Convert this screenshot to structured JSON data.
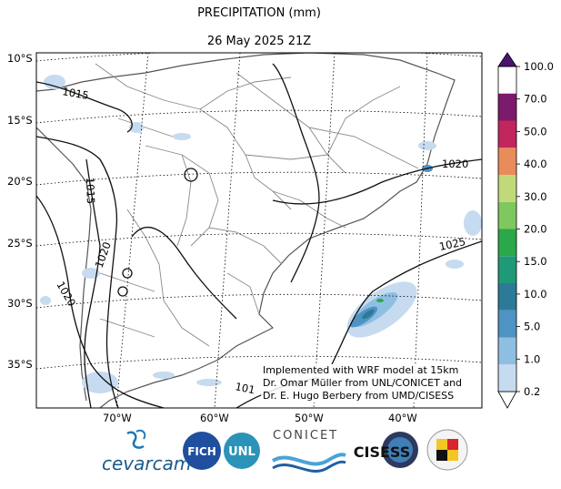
{
  "title": "PRECIPITATION (mm)",
  "subtitle": "26 May 2025 21Z",
  "lat_labels": [
    "10°S",
    "15°S",
    "20°S",
    "25°S",
    "30°S",
    "35°S"
  ],
  "lon_labels": [
    "70°W",
    "60°W",
    "50°W",
    "40°W"
  ],
  "contour_labels": [
    "1015",
    "1015",
    "1020",
    "1020",
    "1020",
    "1025",
    "101"
  ],
  "colorbar": {
    "ticks": [
      "100.0",
      "70.0",
      "50.0",
      "40.0",
      "30.0",
      "20.0",
      "15.0",
      "10.0",
      "5.0",
      "1.0",
      "0.2"
    ],
    "colors": [
      "#ffffff",
      "#c6dbef",
      "#8fbfe0",
      "#4f93c4",
      "#2c7a98",
      "#1f9a79",
      "#2aa84a",
      "#7ec85e",
      "#c2d97b",
      "#e98c5b",
      "#c2265e",
      "#7c1a6b",
      "#4a1470"
    ]
  },
  "credit": {
    "line1": "Implemented with WRF model at 15km",
    "line2": "Dr. Omar Müller from UNL/CONICET and",
    "line3": "Dr. E. Hugo Berbery from UMD/CISESS"
  },
  "logos": {
    "cevarcam": "cevarcam",
    "fich": "FICH",
    "unl": "UNL",
    "conicet": "CONICET",
    "cisess": "CISESS"
  }
}
